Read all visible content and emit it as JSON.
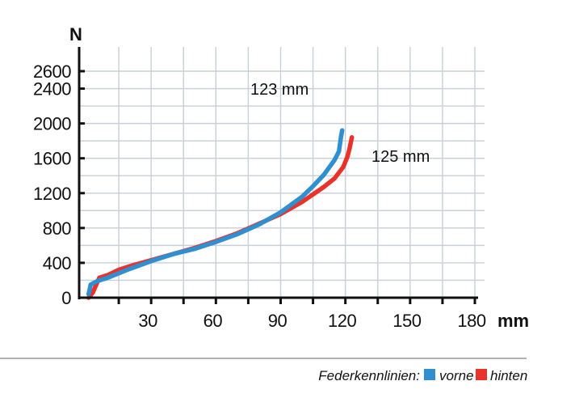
{
  "chart_data": {
    "type": "line",
    "ylabel": "N",
    "xlabel": "mm",
    "xlim": [
      0,
      180
    ],
    "ylim": [
      0,
      2600
    ],
    "x_ticks": [
      30,
      60,
      90,
      120,
      150,
      180
    ],
    "y_ticks": [
      0,
      400,
      800,
      1200,
      1600,
      2000,
      2400,
      2600
    ],
    "grid": true,
    "annotations": [
      "123 mm",
      "125 mm"
    ],
    "legend": {
      "title": "Federkennlinien:",
      "placement": "bottom-right"
    },
    "series": [
      {
        "name": "vorne",
        "color": "#2f8fd0",
        "points": [
          [
            1,
            40
          ],
          [
            2,
            150
          ],
          [
            5,
            190
          ],
          [
            10,
            230
          ],
          [
            20,
            330
          ],
          [
            30,
            420
          ],
          [
            40,
            500
          ],
          [
            50,
            560
          ],
          [
            60,
            640
          ],
          [
            70,
            730
          ],
          [
            80,
            840
          ],
          [
            90,
            980
          ],
          [
            100,
            1160
          ],
          [
            105,
            1280
          ],
          [
            110,
            1410
          ],
          [
            115,
            1580
          ],
          [
            117,
            1680
          ],
          [
            118,
            1850
          ],
          [
            118.5,
            1920
          ]
        ]
      },
      {
        "name": "hinten",
        "color": "#e8322a",
        "points": [
          [
            1,
            0
          ],
          [
            3,
            60
          ],
          [
            6,
            230
          ],
          [
            10,
            260
          ],
          [
            15,
            320
          ],
          [
            20,
            360
          ],
          [
            30,
            430
          ],
          [
            40,
            500
          ],
          [
            50,
            570
          ],
          [
            60,
            650
          ],
          [
            70,
            740
          ],
          [
            80,
            850
          ],
          [
            90,
            960
          ],
          [
            100,
            1100
          ],
          [
            110,
            1270
          ],
          [
            115,
            1370
          ],
          [
            119,
            1500
          ],
          [
            121,
            1620
          ],
          [
            122,
            1720
          ],
          [
            123,
            1840
          ]
        ]
      }
    ]
  }
}
